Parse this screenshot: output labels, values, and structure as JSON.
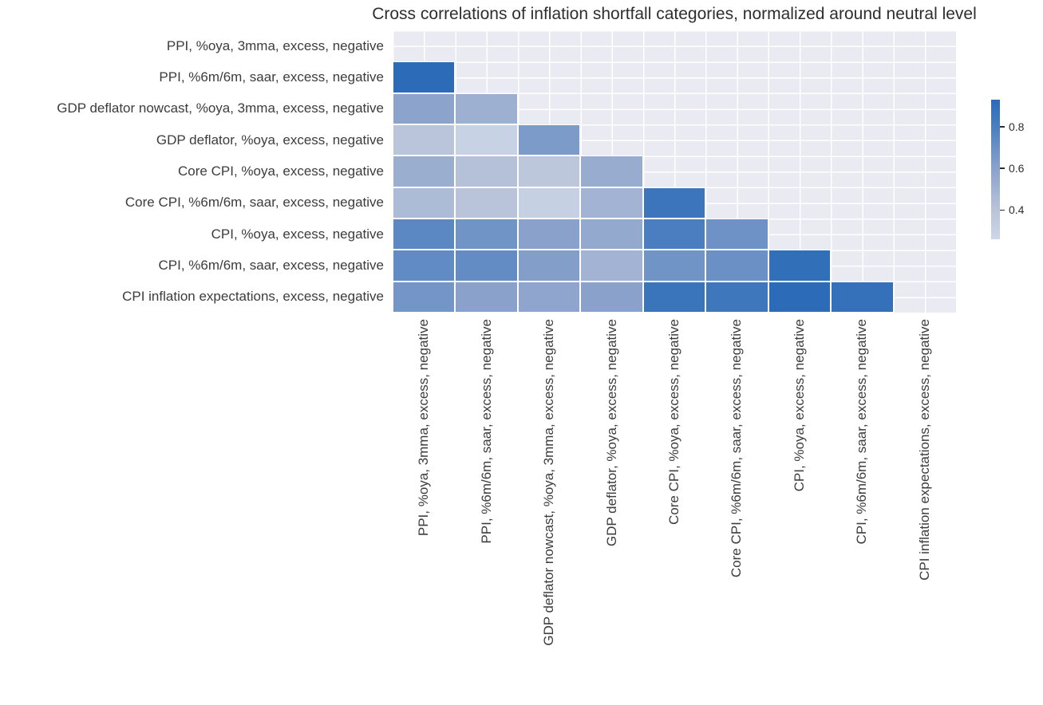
{
  "chart_data": {
    "type": "heatmap",
    "title": "Cross correlations of inflation shortfall categories, normalized around neutral level",
    "categories": [
      "PPI, %oya, 3mma, excess, negative",
      "PPI, %6m/6m, saar, excess, negative",
      "GDP deflator nowcast, %oya, 3mma, excess, negative",
      "GDP deflator, %oya, excess, negative",
      "Core CPI, %oya, excess, negative",
      "Core CPI, %6m/6m, saar, excess, negative",
      "CPI, %oya, excess, negative",
      "CPI, %6m/6m, saar, excess, negative",
      "CPI inflation expectations, excess, negative"
    ],
    "mask": "upper-triangle-including-diagonal",
    "matrix": [
      [
        null,
        null,
        null,
        null,
        null,
        null,
        null,
        null,
        null
      ],
      [
        0.93,
        null,
        null,
        null,
        null,
        null,
        null,
        null,
        null
      ],
      [
        0.59,
        0.52,
        null,
        null,
        null,
        null,
        null,
        null,
        null
      ],
      [
        0.39,
        0.3,
        0.64,
        null,
        null,
        null,
        null,
        null,
        null
      ],
      [
        0.53,
        0.42,
        0.38,
        0.54,
        null,
        null,
        null,
        null,
        null
      ],
      [
        0.45,
        0.4,
        0.31,
        0.5,
        0.86,
        null,
        null,
        null,
        null
      ],
      [
        0.75,
        0.68,
        0.6,
        0.56,
        0.8,
        0.69,
        null,
        null,
        null
      ],
      [
        0.73,
        0.72,
        0.62,
        0.5,
        0.68,
        0.7,
        0.9,
        null,
        null
      ],
      [
        0.67,
        0.6,
        0.58,
        0.6,
        0.87,
        0.85,
        0.93,
        0.89,
        null
      ]
    ],
    "vmin": 0.26,
    "vmax": 0.93,
    "colormap": {
      "name": "Blues",
      "anchors": [
        {
          "value": 0.26,
          "color": "#cdd7e8"
        },
        {
          "value": 0.4,
          "color": "#b9c4da"
        },
        {
          "value": 0.6,
          "color": "#8aa2cb"
        },
        {
          "value": 0.8,
          "color": "#4b7ec0"
        },
        {
          "value": 0.93,
          "color": "#2b6bb7"
        }
      ]
    },
    "colorbar_ticks": [
      {
        "value": 0.8,
        "label": "0.8"
      },
      {
        "value": 0.6,
        "label": "0.6"
      },
      {
        "value": 0.4,
        "label": "0.4"
      }
    ],
    "grid": {
      "background": "#e9eaf2",
      "line_color": "#ffffff"
    },
    "legend_position": "right"
  }
}
